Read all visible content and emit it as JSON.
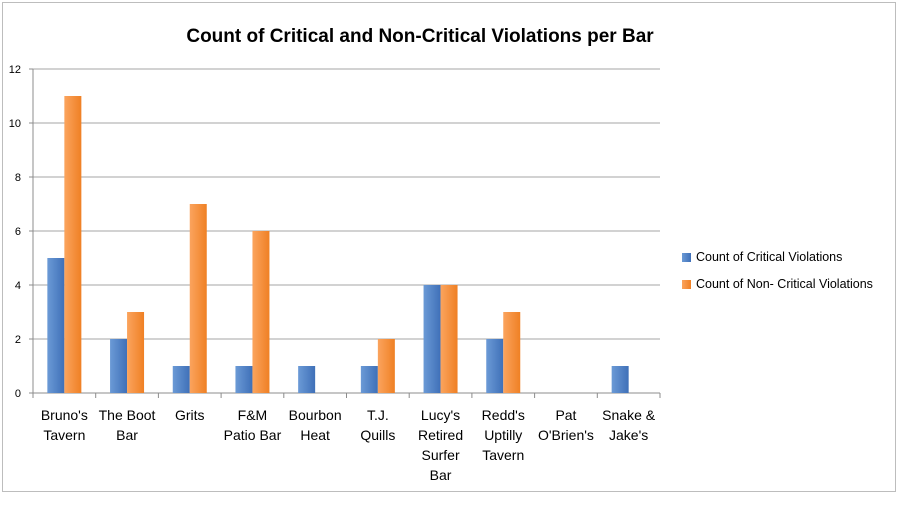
{
  "chart_data": {
    "type": "bar",
    "title": "Count of Critical and Non-Critical Violations per Bar",
    "xlabel": "",
    "ylabel": "",
    "ylim": [
      0,
      12
    ],
    "yticks": [
      0,
      2,
      4,
      6,
      8,
      10,
      12
    ],
    "grid": true,
    "legend_position": "right",
    "categories": [
      [
        "Bruno's",
        "Tavern"
      ],
      [
        "The Boot",
        "Bar"
      ],
      [
        "Grits"
      ],
      [
        "F&M",
        "Patio Bar"
      ],
      [
        "Bourbon",
        "Heat"
      ],
      [
        "T.J.",
        "Quills"
      ],
      [
        "Lucy's",
        "Retired",
        "Surfer",
        "Bar"
      ],
      [
        "Redd's",
        "Uptilly",
        "Tavern"
      ],
      [
        "Pat",
        "O'Brien's"
      ],
      [
        "Snake &",
        "Jake's"
      ]
    ],
    "series": [
      {
        "name": "Count of Critical Violations",
        "color": "#4f81bd",
        "values": [
          5,
          2,
          1,
          1,
          1,
          1,
          4,
          2,
          0,
          1
        ]
      },
      {
        "name": "Count of Non- Critical Violations",
        "color": "#f79646",
        "values": [
          11,
          3,
          7,
          6,
          0,
          2,
          4,
          3,
          0,
          0
        ]
      }
    ]
  }
}
